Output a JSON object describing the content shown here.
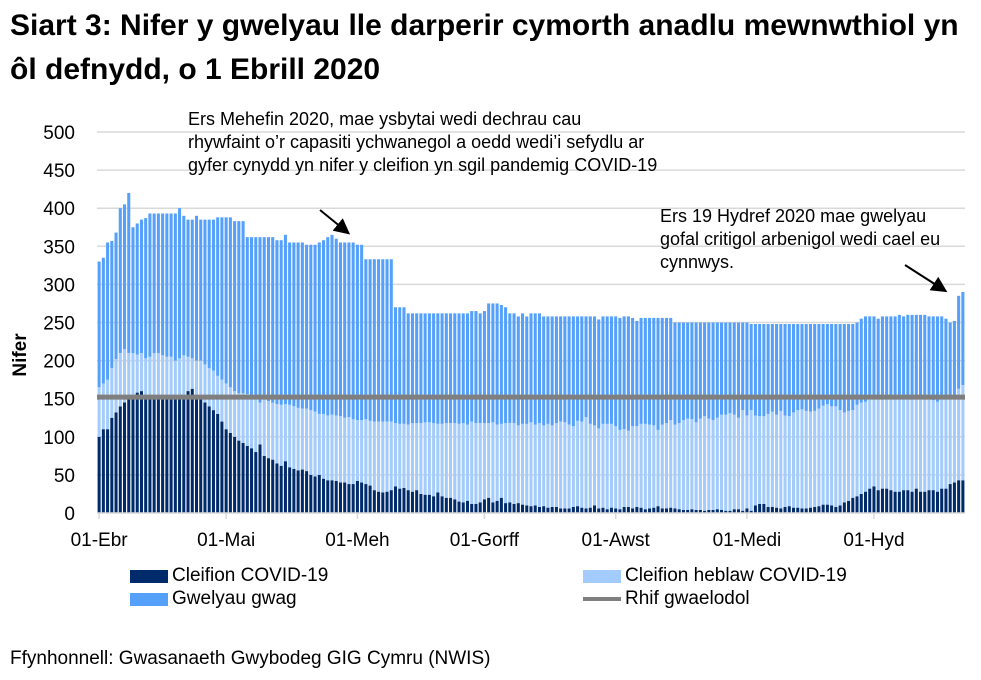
{
  "title": "Siart 3: Nifer y gwelyau lle darperir cymorth anadlu mewnwthiol yn ôl defnydd, o 1 Ebrill 2020",
  "source": "Ffynhonnell: Gwasanaeth Gwybodeg GIG Cymru (NWIS)",
  "annotations": [
    "Ers Mehefin 2020, mae ysbytai wedi dechrau cau rhywfaint o’r capasiti ychwanegol a oedd wedi’i sefydlu ar gyfer cynydd yn nifer y cleifion yn sgil pandemig COVID-19",
    "Ers 19 Hydref 2020 mae gwelyau gofal critigol arbenigol wedi cael eu cynnwys."
  ],
  "chart_data": {
    "type": "bar",
    "stacked": true,
    "title": "",
    "xlabel": "",
    "ylabel": "Nifer",
    "ylim": [
      0,
      500
    ],
    "y_ticks": [
      0,
      50,
      100,
      150,
      200,
      250,
      300,
      350,
      400,
      450,
      500
    ],
    "grid": true,
    "legend_position": "bottom",
    "x_ticks": [
      {
        "label": "01-Ebr",
        "index": 0
      },
      {
        "label": "01-Mai",
        "index": 30
      },
      {
        "label": "01-Meh",
        "index": 61
      },
      {
        "label": "01-Gorff",
        "index": 91
      },
      {
        "label": "01-Awst",
        "index": 122
      },
      {
        "label": "01-Medi",
        "index": 153
      },
      {
        "label": "01-Hyd",
        "index": 183
      }
    ],
    "colors": {
      "covid": "#002b6b",
      "non_covid": "#a3cbfb",
      "vacant": "#55a0fb",
      "baseline": "#7f7f7f",
      "grid": "#d9d9d9"
    },
    "series": [
      {
        "key": "covid",
        "name": "Cleifion COVID-19",
        "values": [
          100,
          110,
          110,
          125,
          132,
          140,
          145,
          150,
          155,
          158,
          160,
          155,
          155,
          155,
          155,
          155,
          155,
          155,
          155,
          155,
          155,
          160,
          163,
          155,
          150,
          145,
          140,
          135,
          130,
          120,
          110,
          105,
          100,
          95,
          92,
          88,
          85,
          80,
          90,
          75,
          72,
          70,
          65,
          62,
          68,
          60,
          58,
          56,
          57,
          55,
          50,
          48,
          50,
          45,
          43,
          43,
          42,
          40,
          40,
          38,
          38,
          42,
          40,
          38,
          36,
          30,
          28,
          27,
          28,
          30,
          35,
          32,
          33,
          30,
          28,
          30,
          25,
          24,
          24,
          22,
          27,
          22,
          20,
          20,
          18,
          15,
          14,
          16,
          12,
          12,
          14,
          18,
          20,
          14,
          16,
          20,
          13,
          14,
          12,
          13,
          11,
          10,
          9,
          10,
          8,
          9,
          7,
          8,
          8,
          6,
          6,
          6,
          8,
          9,
          7,
          6,
          7,
          10,
          6,
          7,
          5,
          7,
          6,
          5,
          8,
          8,
          6,
          8,
          7,
          5,
          6,
          7,
          9,
          6,
          6,
          7,
          6,
          5,
          4,
          4,
          5,
          4,
          4,
          3,
          4,
          4,
          5,
          4,
          3,
          3,
          5,
          5,
          3,
          6,
          3,
          10,
          12,
          12,
          8,
          8,
          7,
          6,
          8,
          9,
          7,
          7,
          6,
          6,
          7,
          8,
          9,
          11,
          11,
          10,
          8,
          10,
          14,
          16,
          20,
          22,
          25,
          28,
          32,
          35,
          30,
          32,
          32,
          30,
          28,
          28,
          30,
          30,
          28,
          32,
          28,
          28,
          30,
          30,
          28,
          32,
          32,
          38,
          40,
          43,
          43
        ]
      },
      {
        "key": "non_covid",
        "name": "Cleifion heblaw COVID-19",
        "values": [
          65,
          60,
          65,
          65,
          70,
          70,
          70,
          60,
          55,
          50,
          50,
          48,
          50,
          55,
          55,
          52,
          50,
          50,
          45,
          48,
          52,
          45,
          40,
          45,
          50,
          50,
          50,
          52,
          50,
          55,
          60,
          60,
          60,
          62,
          65,
          68,
          66,
          70,
          55,
          75,
          75,
          75,
          78,
          80,
          75,
          82,
          82,
          82,
          80,
          82,
          85,
          85,
          80,
          85,
          85,
          86,
          86,
          87,
          85,
          88,
          85,
          80,
          82,
          85,
          85,
          90,
          92,
          93,
          92,
          90,
          83,
          85,
          84,
          86,
          90,
          88,
          93,
          95,
          95,
          96,
          90,
          95,
          98,
          98,
          100,
          102,
          104,
          100,
          108,
          106,
          104,
          100,
          98,
          105,
          100,
          97,
          105,
          104,
          106,
          102,
          106,
          107,
          110,
          106,
          110,
          106,
          110,
          107,
          110,
          114,
          113,
          110,
          106,
          112,
          113,
          120,
          110,
          105,
          105,
          110,
          112,
          110,
          108,
          104,
          102,
          100,
          108,
          106,
          110,
          112,
          110,
          108,
          100,
          110,
          112,
          115,
          110,
          113,
          118,
          120,
          118,
          115,
          120,
          124,
          120,
          118,
          120,
          125,
          126,
          128,
          124,
          120,
          132,
          122,
          132,
          118,
          115,
          115,
          122,
          125,
          122,
          128,
          120,
          118,
          125,
          128,
          130,
          128,
          126,
          126,
          128,
          130,
          132,
          130,
          132,
          125,
          118,
          118,
          115,
          120,
          120,
          118,
          118,
          118,
          122,
          118,
          120,
          122,
          125,
          125,
          122,
          122,
          125,
          120,
          125,
          125,
          125,
          118,
          118,
          118,
          120,
          112,
          115,
          120,
          125
        ]
      },
      {
        "key": "vacant",
        "name": "Gwelyau gwag",
        "values": [
          165,
          165,
          180,
          167,
          166,
          190,
          190,
          210,
          165,
          172,
          175,
          184,
          188,
          183,
          183,
          186,
          188,
          188,
          193,
          197,
          183,
          180,
          182,
          190,
          185,
          190,
          195,
          198,
          208,
          213,
          218,
          223,
          223,
          226,
          226,
          206,
          211,
          212,
          217,
          212,
          215,
          217,
          215,
          216,
          222,
          213,
          215,
          217,
          218,
          215,
          217,
          219,
          225,
          228,
          234,
          236,
          232,
          228,
          230,
          229,
          232,
          230,
          230,
          210,
          212,
          213,
          213,
          213,
          213,
          213,
          152,
          153,
          153,
          146,
          144,
          144,
          144,
          143,
          143,
          144,
          145,
          145,
          144,
          144,
          144,
          145,
          144,
          146,
          145,
          147,
          144,
          147,
          157,
          156,
          159,
          156,
          152,
          144,
          144,
          143,
          145,
          141,
          143,
          146,
          144,
          143,
          141,
          143,
          140,
          138,
          139,
          142,
          144,
          137,
          138,
          132,
          141,
          143,
          143,
          141,
          141,
          141,
          144,
          147,
          148,
          150,
          142,
          138,
          139,
          139,
          140,
          141,
          147,
          140,
          138,
          134,
          134,
          132,
          128,
          126,
          127,
          131,
          126,
          123,
          126,
          128,
          125,
          121,
          121,
          119,
          121,
          125,
          115,
          122,
          113,
          120,
          121,
          121,
          118,
          115,
          119,
          114,
          120,
          121,
          116,
          113,
          112,
          114,
          115,
          114,
          111,
          107,
          105,
          108,
          108,
          113,
          116,
          114,
          113,
          108,
          110,
          112,
          108,
          105,
          103,
          108,
          106,
          106,
          105,
          107,
          106,
          108,
          107,
          108,
          107,
          107,
          103,
          110,
          112,
          108,
          103,
          100,
          97,
          122,
          122
        ]
      }
    ],
    "baseline": {
      "name": "Rhif gwaelodol",
      "value": 152
    }
  }
}
